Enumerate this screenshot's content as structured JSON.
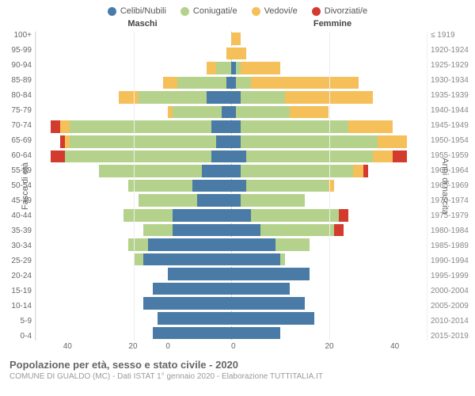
{
  "chart": {
    "type": "population-pyramid-stacked",
    "legend": [
      {
        "label": "Celibi/Nubili",
        "color": "#4a7ba6"
      },
      {
        "label": "Coniugati/e",
        "color": "#b4d28b"
      },
      {
        "label": "Vedovi/e",
        "color": "#f5c05a"
      },
      {
        "label": "Divorziati/e",
        "color": "#d33b2f"
      }
    ],
    "header_left": "Maschi",
    "header_right": "Femmine",
    "y_axis_left_label": "Fasce di età",
    "y_axis_right_label": "Anni di nascita",
    "x_max": 40,
    "x_ticks": [
      0,
      20,
      40
    ],
    "age_labels": [
      "100+",
      "95-99",
      "90-94",
      "85-89",
      "80-84",
      "75-79",
      "70-74",
      "65-69",
      "60-64",
      "55-59",
      "50-54",
      "45-49",
      "40-44",
      "35-39",
      "30-34",
      "25-29",
      "20-24",
      "15-19",
      "10-14",
      "5-9",
      "0-4"
    ],
    "birth_labels": [
      "≤ 1919",
      "1920-1924",
      "1925-1929",
      "1930-1934",
      "1935-1939",
      "1940-1944",
      "1945-1949",
      "1950-1954",
      "1955-1959",
      "1960-1964",
      "1965-1969",
      "1970-1974",
      "1975-1979",
      "1980-1984",
      "1985-1989",
      "1990-1994",
      "1995-1999",
      "2000-2004",
      "2005-2009",
      "2010-2014",
      "2015-2019"
    ],
    "rows": [
      {
        "m": {
          "celibi": 0,
          "coniugati": 0,
          "vedovi": 0,
          "divorziati": 0
        },
        "f": {
          "celibi": 0,
          "coniugati": 0,
          "vedovi": 2,
          "divorziati": 0
        }
      },
      {
        "m": {
          "celibi": 0,
          "coniugati": 0,
          "vedovi": 1,
          "divorziati": 0
        },
        "f": {
          "celibi": 0,
          "coniugati": 0,
          "vedovi": 3,
          "divorziati": 0
        }
      },
      {
        "m": {
          "celibi": 0,
          "coniugati": 3,
          "vedovi": 2,
          "divorziati": 0
        },
        "f": {
          "celibi": 1,
          "coniugati": 1,
          "vedovi": 8,
          "divorziati": 0
        }
      },
      {
        "m": {
          "celibi": 1,
          "coniugati": 10,
          "vedovi": 3,
          "divorziati": 0
        },
        "f": {
          "celibi": 1,
          "coniugati": 3,
          "vedovi": 22,
          "divorziati": 0
        }
      },
      {
        "m": {
          "celibi": 5,
          "coniugati": 14,
          "vedovi": 4,
          "divorziati": 0
        },
        "f": {
          "celibi": 2,
          "coniugati": 9,
          "vedovi": 18,
          "divorziati": 0
        }
      },
      {
        "m": {
          "celibi": 2,
          "coniugati": 10,
          "vedovi": 1,
          "divorziati": 0
        },
        "f": {
          "celibi": 1,
          "coniugati": 11,
          "vedovi": 8,
          "divorziati": 0
        }
      },
      {
        "m": {
          "celibi": 4,
          "coniugati": 29,
          "vedovi": 2,
          "divorziati": 2
        },
        "f": {
          "celibi": 2,
          "coniugati": 22,
          "vedovi": 9,
          "divorziati": 0
        }
      },
      {
        "m": {
          "celibi": 3,
          "coniugati": 30,
          "vedovi": 1,
          "divorziati": 1
        },
        "f": {
          "celibi": 2,
          "coniugati": 28,
          "vedovi": 6,
          "divorziati": 0
        }
      },
      {
        "m": {
          "celibi": 4,
          "coniugati": 30,
          "vedovi": 0,
          "divorziati": 3
        },
        "f": {
          "celibi": 3,
          "coniugati": 26,
          "vedovi": 4,
          "divorziati": 3
        }
      },
      {
        "m": {
          "celibi": 6,
          "coniugati": 21,
          "vedovi": 0,
          "divorziati": 0
        },
        "f": {
          "celibi": 2,
          "coniugati": 23,
          "vedovi": 2,
          "divorziati": 1
        }
      },
      {
        "m": {
          "celibi": 8,
          "coniugati": 13,
          "vedovi": 0,
          "divorziati": 0
        },
        "f": {
          "celibi": 3,
          "coniugati": 17,
          "vedovi": 1,
          "divorziati": 0
        }
      },
      {
        "m": {
          "celibi": 7,
          "coniugati": 12,
          "vedovi": 0,
          "divorziati": 0
        },
        "f": {
          "celibi": 2,
          "coniugati": 13,
          "vedovi": 0,
          "divorziati": 0
        }
      },
      {
        "m": {
          "celibi": 12,
          "coniugati": 10,
          "vedovi": 0,
          "divorziati": 0
        },
        "f": {
          "celibi": 4,
          "coniugati": 18,
          "vedovi": 0,
          "divorziati": 2
        }
      },
      {
        "m": {
          "celibi": 12,
          "coniugati": 6,
          "vedovi": 0,
          "divorziati": 0
        },
        "f": {
          "celibi": 6,
          "coniugati": 15,
          "vedovi": 0,
          "divorziati": 2
        }
      },
      {
        "m": {
          "celibi": 17,
          "coniugati": 4,
          "vedovi": 0,
          "divorziati": 0
        },
        "f": {
          "celibi": 9,
          "coniugati": 7,
          "vedovi": 0,
          "divorziati": 0
        }
      },
      {
        "m": {
          "celibi": 18,
          "coniugati": 2,
          "vedovi": 0,
          "divorziati": 0
        },
        "f": {
          "celibi": 10,
          "coniugati": 1,
          "vedovi": 0,
          "divorziati": 0
        }
      },
      {
        "m": {
          "celibi": 13,
          "coniugati": 0,
          "vedovi": 0,
          "divorziati": 0
        },
        "f": {
          "celibi": 16,
          "coniugati": 0,
          "vedovi": 0,
          "divorziati": 0
        }
      },
      {
        "m": {
          "celibi": 16,
          "coniugati": 0,
          "vedovi": 0,
          "divorziati": 0
        },
        "f": {
          "celibi": 12,
          "coniugati": 0,
          "vedovi": 0,
          "divorziati": 0
        }
      },
      {
        "m": {
          "celibi": 18,
          "coniugati": 0,
          "vedovi": 0,
          "divorziati": 0
        },
        "f": {
          "celibi": 15,
          "coniugati": 0,
          "vedovi": 0,
          "divorziati": 0
        }
      },
      {
        "m": {
          "celibi": 15,
          "coniugati": 0,
          "vedovi": 0,
          "divorziati": 0
        },
        "f": {
          "celibi": 17,
          "coniugati": 0,
          "vedovi": 0,
          "divorziati": 0
        }
      },
      {
        "m": {
          "celibi": 16,
          "coniugati": 0,
          "vedovi": 0,
          "divorziati": 0
        },
        "f": {
          "celibi": 10,
          "coniugati": 0,
          "vedovi": 0,
          "divorziati": 0
        }
      }
    ]
  },
  "footer": {
    "title": "Popolazione per età, sesso e stato civile - 2020",
    "subtitle": "COMUNE DI GUALDO (MC) - Dati ISTAT 1° gennaio 2020 - Elaborazione TUTTITALIA.IT"
  }
}
